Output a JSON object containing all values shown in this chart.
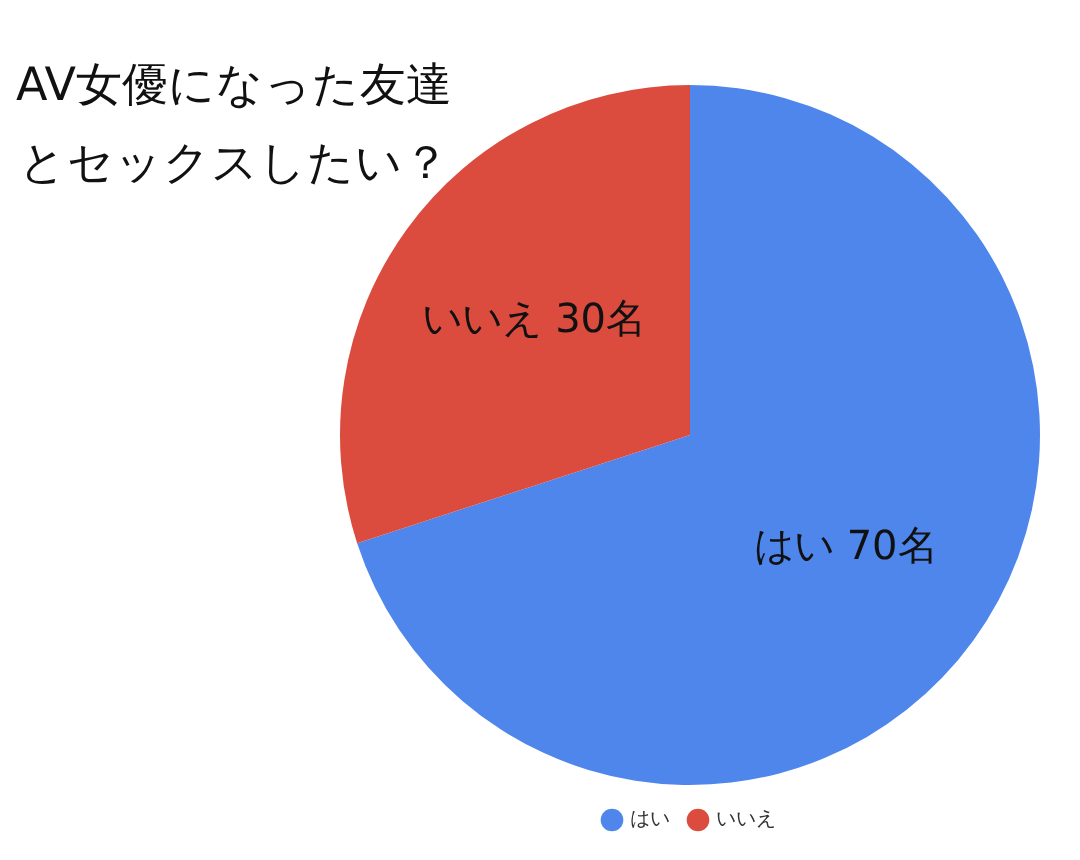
{
  "chart_data": {
    "type": "pie",
    "title": "AV女優になった友達とセックスしたい？",
    "categories": [
      "はい",
      "いいえ"
    ],
    "values": [
      70,
      30
    ],
    "colors": [
      "#4f86ec",
      "#db4c3f"
    ],
    "value_labels": [
      "はい 70名",
      "いいえ 30名"
    ],
    "legend": "bottom"
  }
}
